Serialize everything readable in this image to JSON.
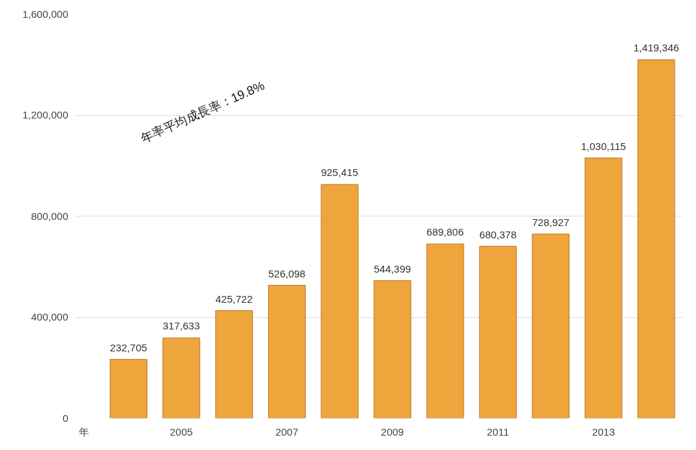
{
  "chart_data": {
    "type": "bar",
    "xlabel": "年",
    "categories": [
      null,
      "2005",
      null,
      "2007",
      null,
      "2009",
      null,
      "2011",
      null,
      "2013",
      null
    ],
    "values": [
      232705,
      317633,
      425722,
      526098,
      925415,
      544399,
      689806,
      680378,
      728927,
      1030115,
      1419346
    ],
    "color": "#eea53c",
    "value_labels": [
      "232,705",
      "317,633",
      "425,722",
      "526,098",
      "925,415",
      "544,399",
      "689,806",
      "680,378",
      "728,927",
      "1,030,115",
      "1,419,346"
    ],
    "ylim": [
      0,
      1600000
    ],
    "yticks": [
      {
        "value": 0,
        "label": "0"
      },
      {
        "value": 400000,
        "label": "400,000"
      },
      {
        "value": 800000,
        "label": "800,000"
      },
      {
        "value": 1200000,
        "label": "1,200,000"
      },
      {
        "value": 1600000,
        "label": "1,600,000"
      }
    ],
    "grid": "y",
    "annotations": [
      "年率平均成長率：19.8%"
    ]
  }
}
